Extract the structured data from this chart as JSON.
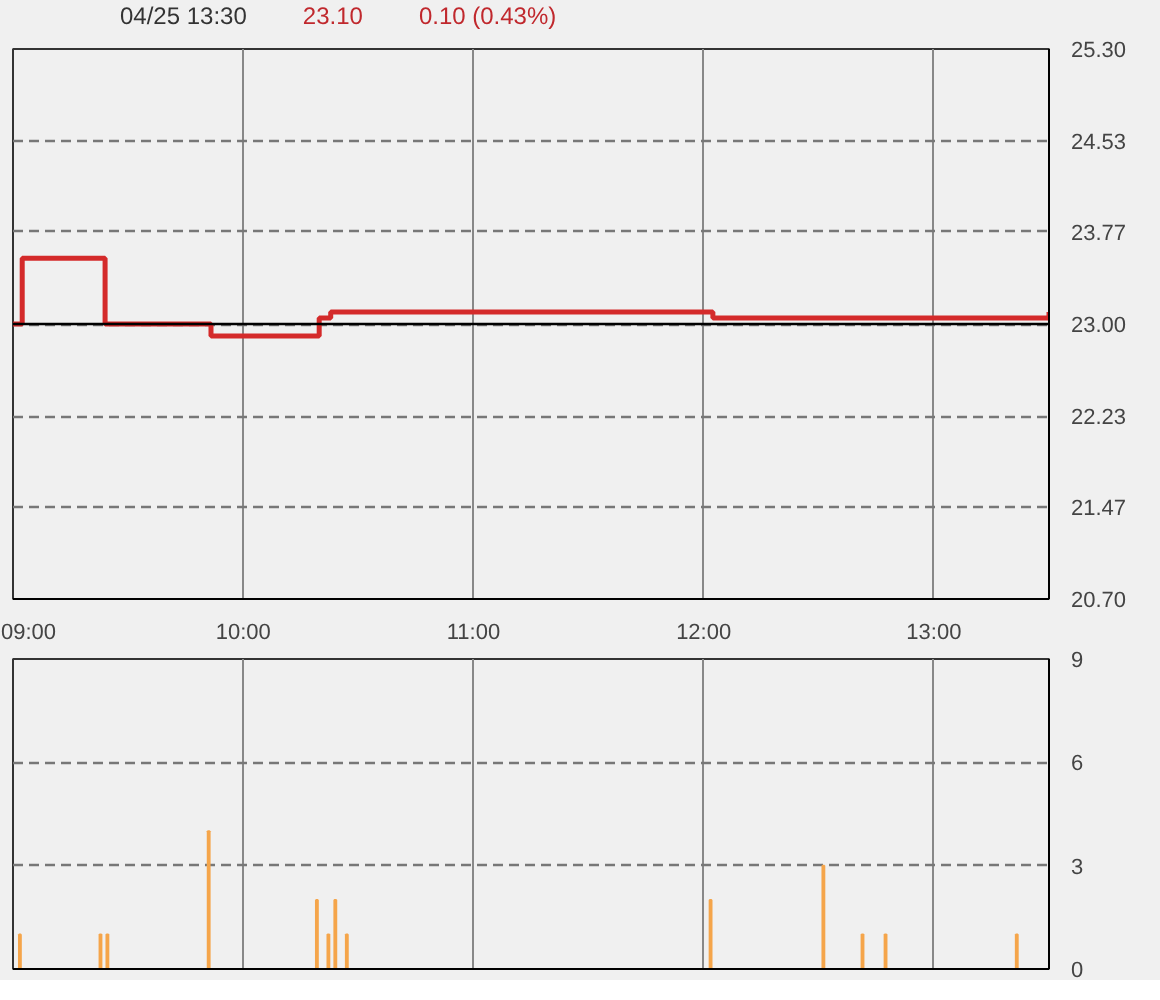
{
  "chart_data": [
    {
      "type": "step",
      "annotations": [
        "04/25 13:30",
        "23.10",
        "0.10 (0.43%)"
      ],
      "series": [
        {
          "color": "#d42a2a",
          "x": [
            9.0,
            9.04,
            9.37,
            9.4,
            9.83,
            9.86,
            10.3,
            10.33,
            10.38,
            12.01,
            12.04,
            13.48,
            13.5
          ],
          "values": [
            23.0,
            23.55,
            23.55,
            23.0,
            23.0,
            22.9,
            22.9,
            23.05,
            23.1,
            23.1,
            23.05,
            23.05,
            23.1
          ]
        }
      ],
      "xlim": [
        9.0,
        13.5
      ],
      "xticks": [
        {
          "value": 9,
          "label": "09:00"
        },
        {
          "value": 10,
          "label": "10:00"
        },
        {
          "value": 11,
          "label": "11:00"
        },
        {
          "value": 12,
          "label": "12:00"
        },
        {
          "value": 13,
          "label": "13:00"
        }
      ],
      "ylim": [
        20.7,
        25.3
      ],
      "yticks": [
        {
          "value": 20.7,
          "label": "20.70"
        },
        {
          "value": 21.47,
          "label": "21.47"
        },
        {
          "value": 22.23,
          "label": "22.23"
        },
        {
          "value": 23.0,
          "label": "23.00"
        },
        {
          "value": 23.77,
          "label": "23.77"
        },
        {
          "value": 24.53,
          "label": "24.53"
        },
        {
          "value": 25.3,
          "label": "25.30"
        }
      ],
      "ref_lines": [
        {
          "axis": "y",
          "value": 23.0,
          "color": "#000000"
        }
      ],
      "grid": true
    },
    {
      "type": "bar",
      "series": [
        {
          "color": "#f5a54a",
          "x": [
            9.03,
            9.38,
            9.41,
            9.85,
            10.32,
            10.37,
            10.4,
            10.45,
            12.03,
            12.52,
            12.69,
            12.79,
            13.36
          ],
          "values": [
            1,
            1,
            1,
            4,
            2,
            1,
            2,
            1,
            2,
            3,
            1,
            1,
            1
          ]
        }
      ],
      "xlim": [
        9.0,
        13.5
      ],
      "xticks": [
        9,
        10,
        11,
        12,
        13
      ],
      "ylim": [
        0,
        9
      ],
      "yticks": [
        0,
        3,
        6,
        9
      ],
      "tick_labels": "y",
      "grid": true
    }
  ]
}
